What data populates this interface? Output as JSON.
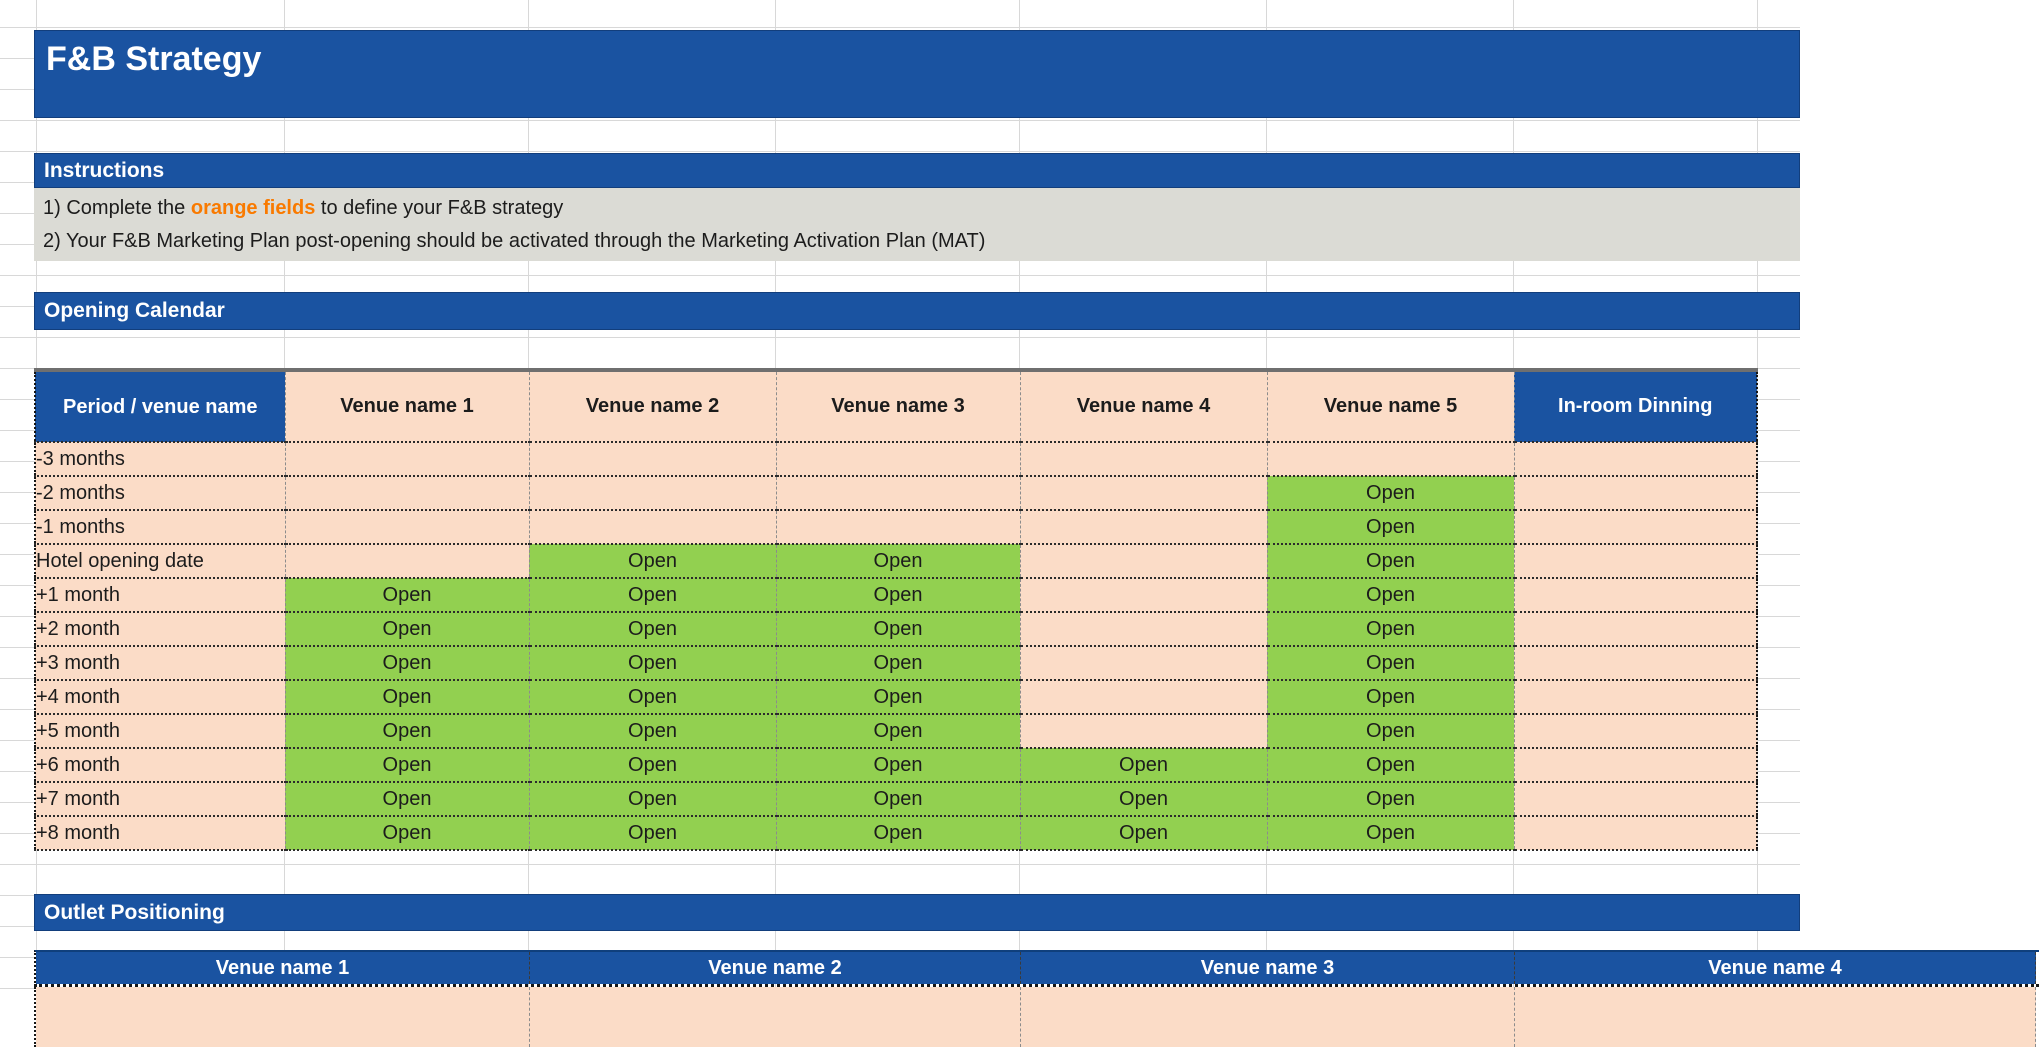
{
  "page": {
    "title": "F&B Strategy"
  },
  "colors": {
    "header_blue": "#1A53A1",
    "peach_field": "#FBDCC7",
    "open_green": "#92D050",
    "instructions_gray": "#DBDBD5",
    "orange_text": "#F97A00"
  },
  "sections": {
    "instructions": {
      "title": "Instructions",
      "line1_prefix": "1) Complete the ",
      "line1_highlight": "orange fields",
      "line1_suffix": " to define your F&B strategy",
      "line2": "2) Your F&B Marketing Plan post-opening should be activated through the Marketing Activation Plan (MAT)"
    },
    "opening_calendar": {
      "title": "Opening Calendar",
      "table": {
        "corner_header": "Period / venue name",
        "columns": [
          "Venue name 1",
          "Venue name 2",
          "Venue name 3",
          "Venue name 4",
          "Venue name 5",
          "In-room Dinning"
        ],
        "open_label": "Open",
        "rows": [
          {
            "label": "-3 months",
            "open": [
              false,
              false,
              false,
              false,
              false,
              false
            ]
          },
          {
            "label": "-2 months",
            "open": [
              false,
              false,
              false,
              false,
              true,
              false
            ]
          },
          {
            "label": "-1 months",
            "open": [
              false,
              false,
              false,
              false,
              true,
              false
            ]
          },
          {
            "label": "Hotel opening date",
            "open": [
              false,
              true,
              true,
              false,
              true,
              false
            ]
          },
          {
            "label": "+1 month",
            "open": [
              true,
              true,
              true,
              false,
              true,
              false
            ]
          },
          {
            "label": "+2 month",
            "open": [
              true,
              true,
              true,
              false,
              true,
              false
            ]
          },
          {
            "label": "+3 month",
            "open": [
              true,
              true,
              true,
              false,
              true,
              false
            ]
          },
          {
            "label": "+4 month",
            "open": [
              true,
              true,
              true,
              false,
              true,
              false
            ]
          },
          {
            "label": "+5 month",
            "open": [
              true,
              true,
              true,
              false,
              true,
              false
            ]
          },
          {
            "label": "+6 month",
            "open": [
              true,
              true,
              true,
              true,
              true,
              false
            ]
          },
          {
            "label": "+7 month",
            "open": [
              true,
              true,
              true,
              true,
              true,
              false
            ]
          },
          {
            "label": "+8 month",
            "open": [
              true,
              true,
              true,
              true,
              true,
              false
            ]
          }
        ]
      }
    },
    "outlet_positioning": {
      "title": "Outlet Positioning",
      "columns": [
        "Venue name 1",
        "Venue name 2",
        "Venue name 3",
        "Venue name 4"
      ]
    }
  }
}
